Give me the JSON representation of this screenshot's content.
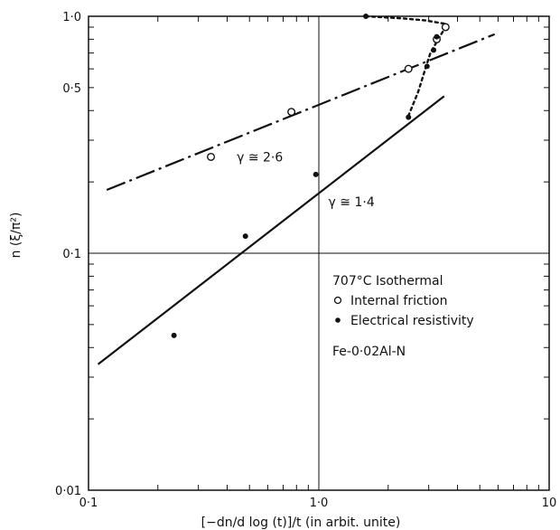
{
  "chart_data": {
    "type": "scatter",
    "scale": {
      "x": "log",
      "y": "log"
    },
    "xlim": [
      0.1,
      10
    ],
    "ylim": [
      0.01,
      1.0
    ],
    "x_ticks": [
      {
        "value": 0.1,
        "label": "0·1"
      },
      {
        "value": 1.0,
        "label": "1·0"
      },
      {
        "value": 10,
        "label": "10"
      }
    ],
    "y_ticks": [
      {
        "value": 0.01,
        "label": "0·01"
      },
      {
        "value": 0.1,
        "label": "0·1"
      },
      {
        "value": 0.5,
        "label": "0·5"
      },
      {
        "value": 1.0,
        "label": "1·0"
      }
    ],
    "xlabel": "[−dn/d log (t)]/t   (in arbit. unite)",
    "ylabel": "n (ξ/π²)",
    "grid_lines": {
      "x": [
        1.0
      ],
      "y": [
        0.1
      ]
    },
    "legend": {
      "placement": "lower-right",
      "title": "707°C  Isothermal",
      "entries": [
        {
          "marker": "open-circle",
          "label": "Internal friction"
        },
        {
          "marker": "filled-circle",
          "label": "Electrical resistivity"
        }
      ],
      "note": "Fe-0·02Al-N"
    },
    "series": [
      {
        "name": "Internal friction",
        "marker": "open-circle",
        "points": [
          {
            "x": 0.34,
            "y": 0.255
          },
          {
            "x": 0.76,
            "y": 0.395
          },
          {
            "x": 2.45,
            "y": 0.6
          },
          {
            "x": 3.25,
            "y": 0.8
          },
          {
            "x": 3.55,
            "y": 0.9
          }
        ]
      },
      {
        "name": "Electrical resistivity",
        "marker": "filled-circle",
        "points": [
          {
            "x": 0.235,
            "y": 0.045
          },
          {
            "x": 0.48,
            "y": 0.118
          },
          {
            "x": 0.97,
            "y": 0.215
          },
          {
            "x": 1.6,
            "y": 1.0
          },
          {
            "x": 2.45,
            "y": 0.375
          },
          {
            "x": 2.95,
            "y": 0.615
          },
          {
            "x": 3.15,
            "y": 0.72
          },
          {
            "x": 3.25,
            "y": 0.82
          }
        ]
      }
    ],
    "fit_lines": [
      {
        "style": "dash-dot",
        "points": [
          {
            "x": 0.12,
            "y": 0.185
          },
          {
            "x": 5.8,
            "y": 0.84
          }
        ]
      },
      {
        "style": "solid",
        "points": [
          {
            "x": 0.11,
            "y": 0.034
          },
          {
            "x": 3.5,
            "y": 0.46
          }
        ]
      }
    ],
    "curves": [
      {
        "style": "dotted",
        "points": [
          {
            "x": 1.6,
            "y": 1.0
          },
          {
            "x": 2.3,
            "y": 0.98
          },
          {
            "x": 2.9,
            "y": 0.96
          },
          {
            "x": 3.55,
            "y": 0.93
          },
          {
            "x": 3.45,
            "y": 0.86
          },
          {
            "x": 3.25,
            "y": 0.78
          },
          {
            "x": 3.05,
            "y": 0.7
          },
          {
            "x": 2.9,
            "y": 0.6
          },
          {
            "x": 2.7,
            "y": 0.48
          },
          {
            "x": 2.45,
            "y": 0.38
          }
        ]
      }
    ],
    "annotations": [
      {
        "text": "γ ≅ 2·6",
        "x": 0.44,
        "y": 0.255
      },
      {
        "text": "γ ≅ 1·4",
        "x": 1.1,
        "y": 0.165
      }
    ]
  }
}
